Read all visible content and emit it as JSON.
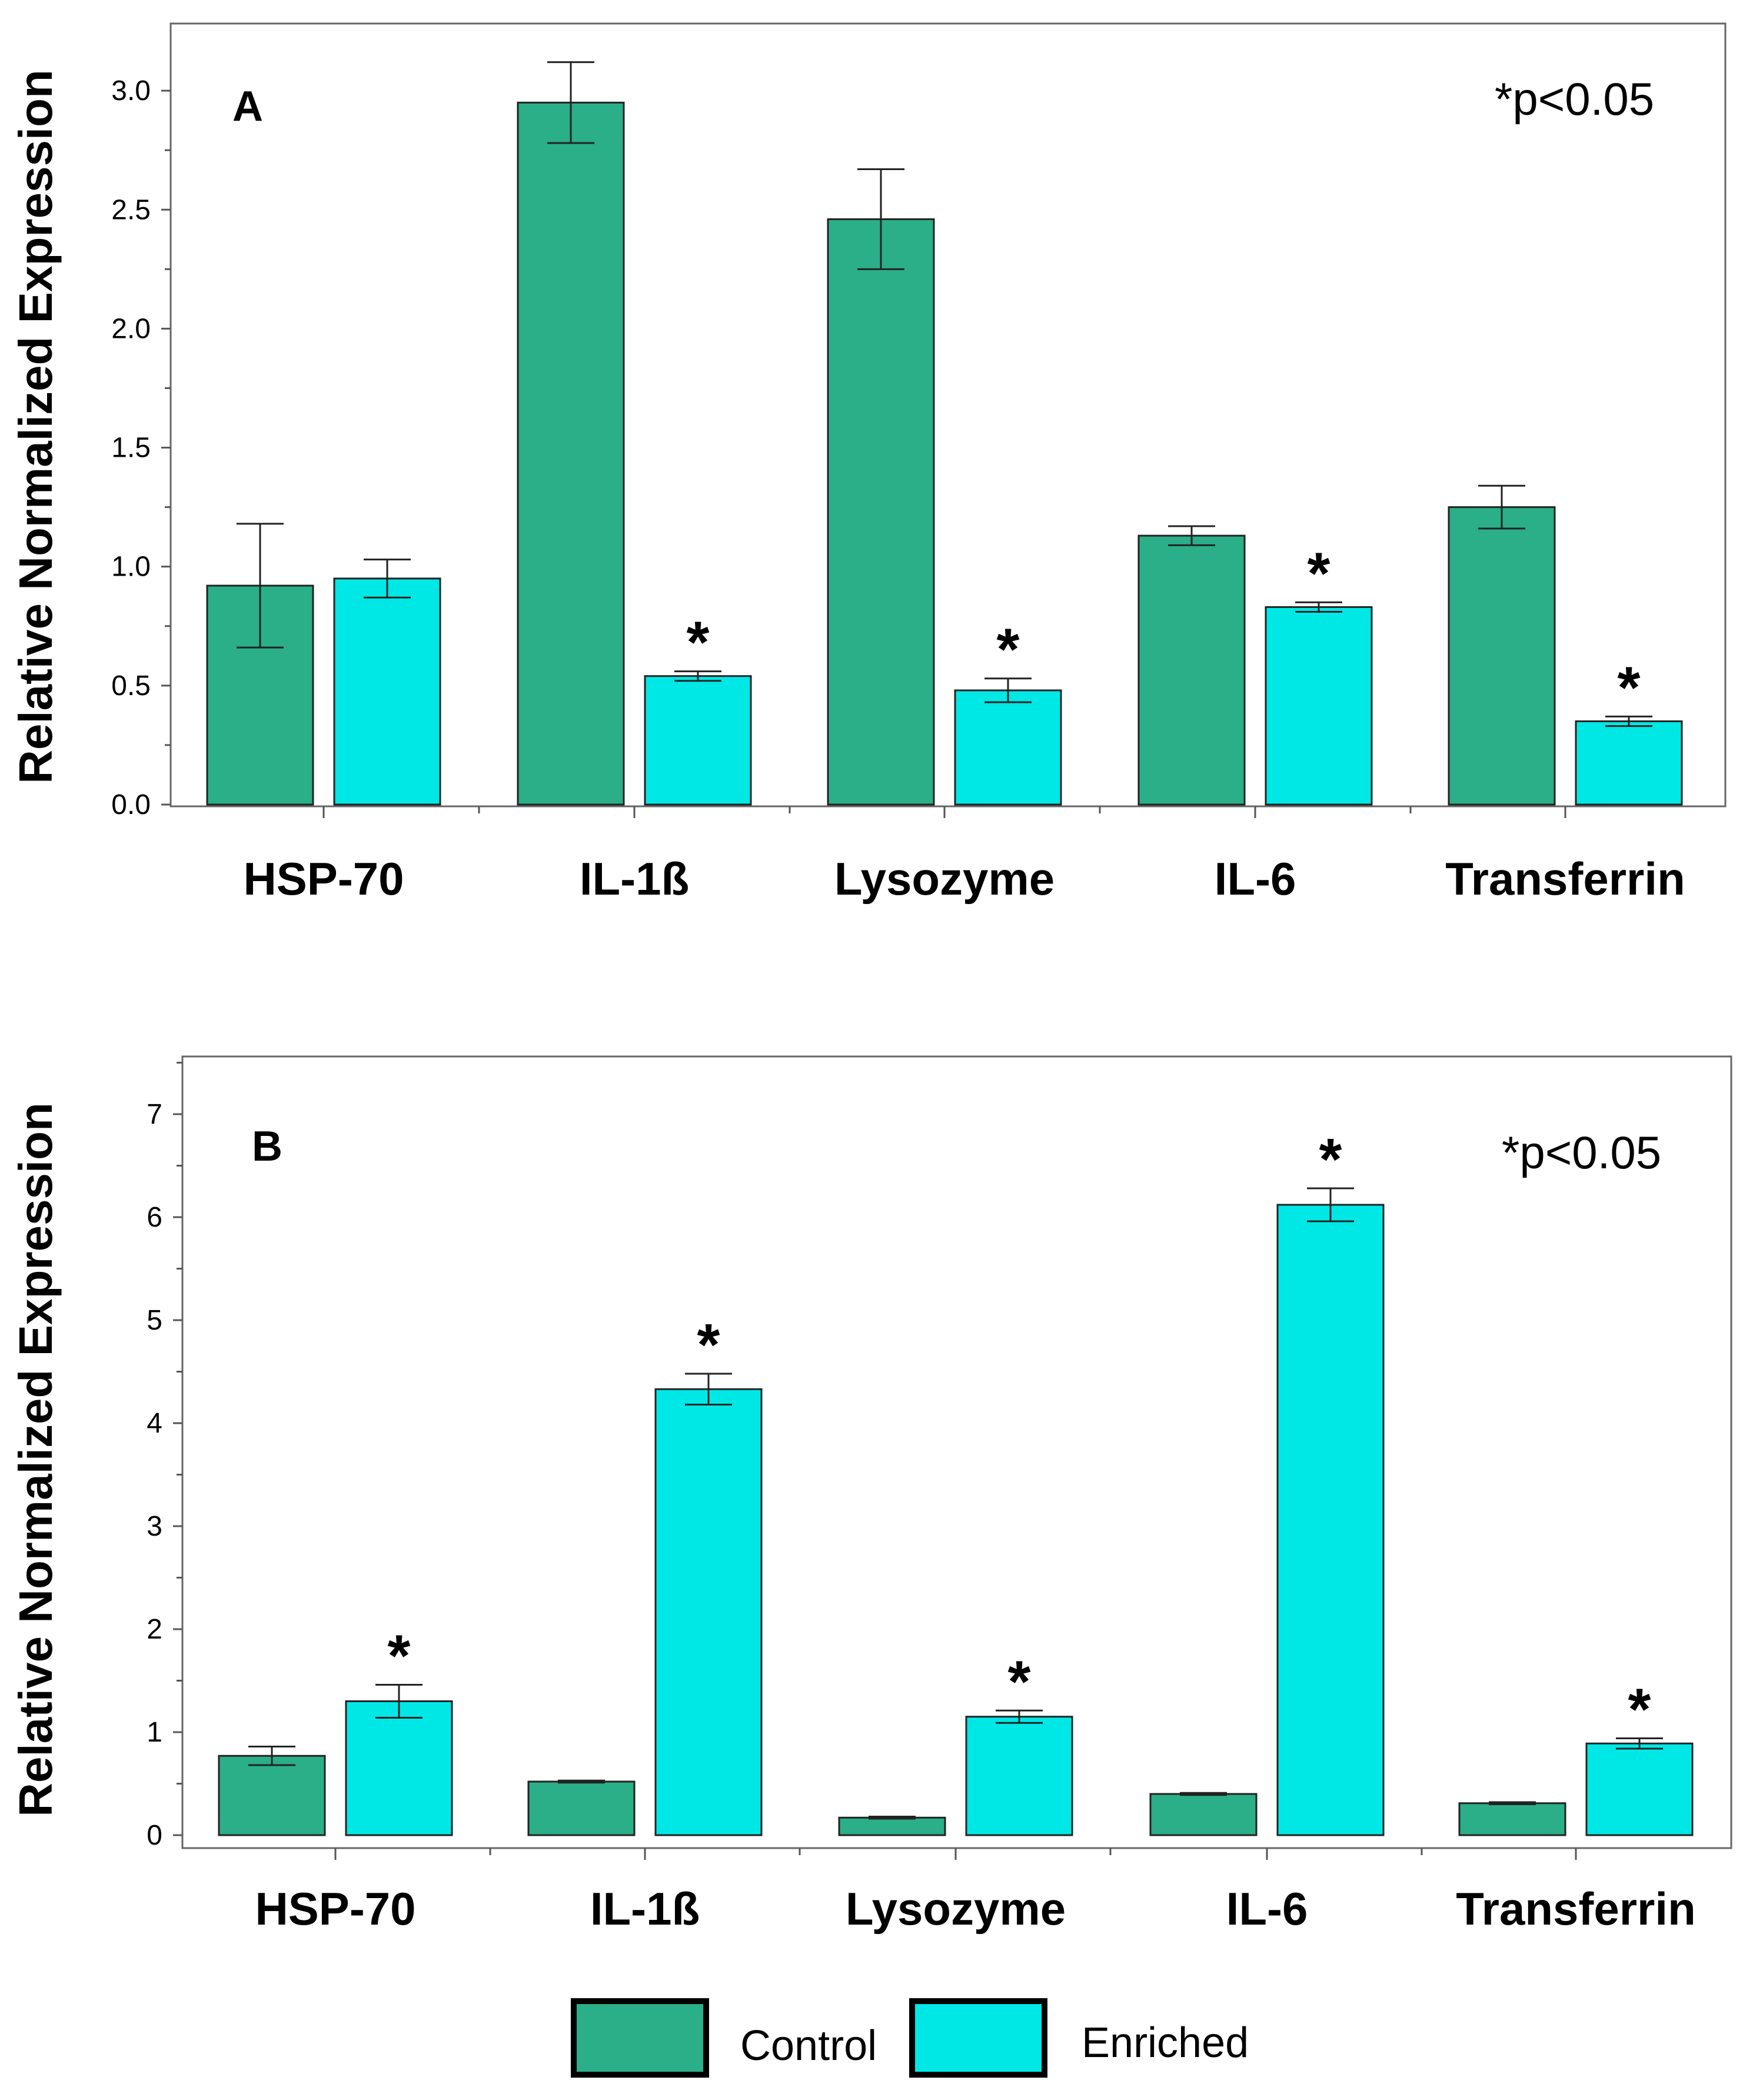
{
  "legend": {
    "control_label": "Control",
    "enriched_label": "Enriched",
    "control_color": "#2aaf88",
    "enriched_color": "#00e8e6"
  },
  "chart_data": [
    {
      "type": "bar",
      "panel_label": "A",
      "annotation": "*p<0.05",
      "ylabel": "Relative Normalized Expression",
      "xlabel": "",
      "ylim": [
        0,
        3.2
      ],
      "yticks": [
        "0.0",
        "0.5",
        "1.0",
        "1.5",
        "2.0",
        "2.5",
        "3.0"
      ],
      "categories": [
        "HSP-70",
        "IL-1ß",
        "Lysozyme",
        "IL-6",
        "Transferrin"
      ],
      "series": [
        {
          "name": "Control",
          "values": [
            0.92,
            2.95,
            2.46,
            1.13,
            1.25
          ],
          "errors": [
            0.26,
            0.17,
            0.21,
            0.04,
            0.09
          ],
          "significant": [
            false,
            false,
            false,
            false,
            false
          ]
        },
        {
          "name": "Enriched",
          "values": [
            0.95,
            0.54,
            0.48,
            0.83,
            0.35
          ],
          "errors": [
            0.08,
            0.02,
            0.05,
            0.02,
            0.02
          ],
          "significant": [
            false,
            true,
            true,
            true,
            true
          ]
        }
      ]
    },
    {
      "type": "bar",
      "panel_label": "B",
      "annotation": "*p<0.05",
      "ylabel": "Relative Normalized Expression",
      "xlabel": "",
      "ylim": [
        -0.1,
        7.5
      ],
      "yticks": [
        "0",
        "1",
        "2",
        "3",
        "4",
        "5",
        "6",
        "7"
      ],
      "categories": [
        "HSP-70",
        "IL-1ß",
        "Lysozyme",
        "IL-6",
        "Transferrin"
      ],
      "series": [
        {
          "name": "Control",
          "values": [
            0.77,
            0.52,
            0.17,
            0.4,
            0.31
          ],
          "errors": [
            0.09,
            0.01,
            0.01,
            0.01,
            0.01
          ],
          "significant": [
            false,
            false,
            false,
            false,
            false
          ]
        },
        {
          "name": "Enriched",
          "values": [
            1.3,
            4.33,
            1.15,
            6.12,
            0.89
          ],
          "errors": [
            0.16,
            0.15,
            0.06,
            0.16,
            0.05
          ],
          "significant": [
            true,
            true,
            true,
            true,
            true
          ]
        }
      ]
    }
  ]
}
